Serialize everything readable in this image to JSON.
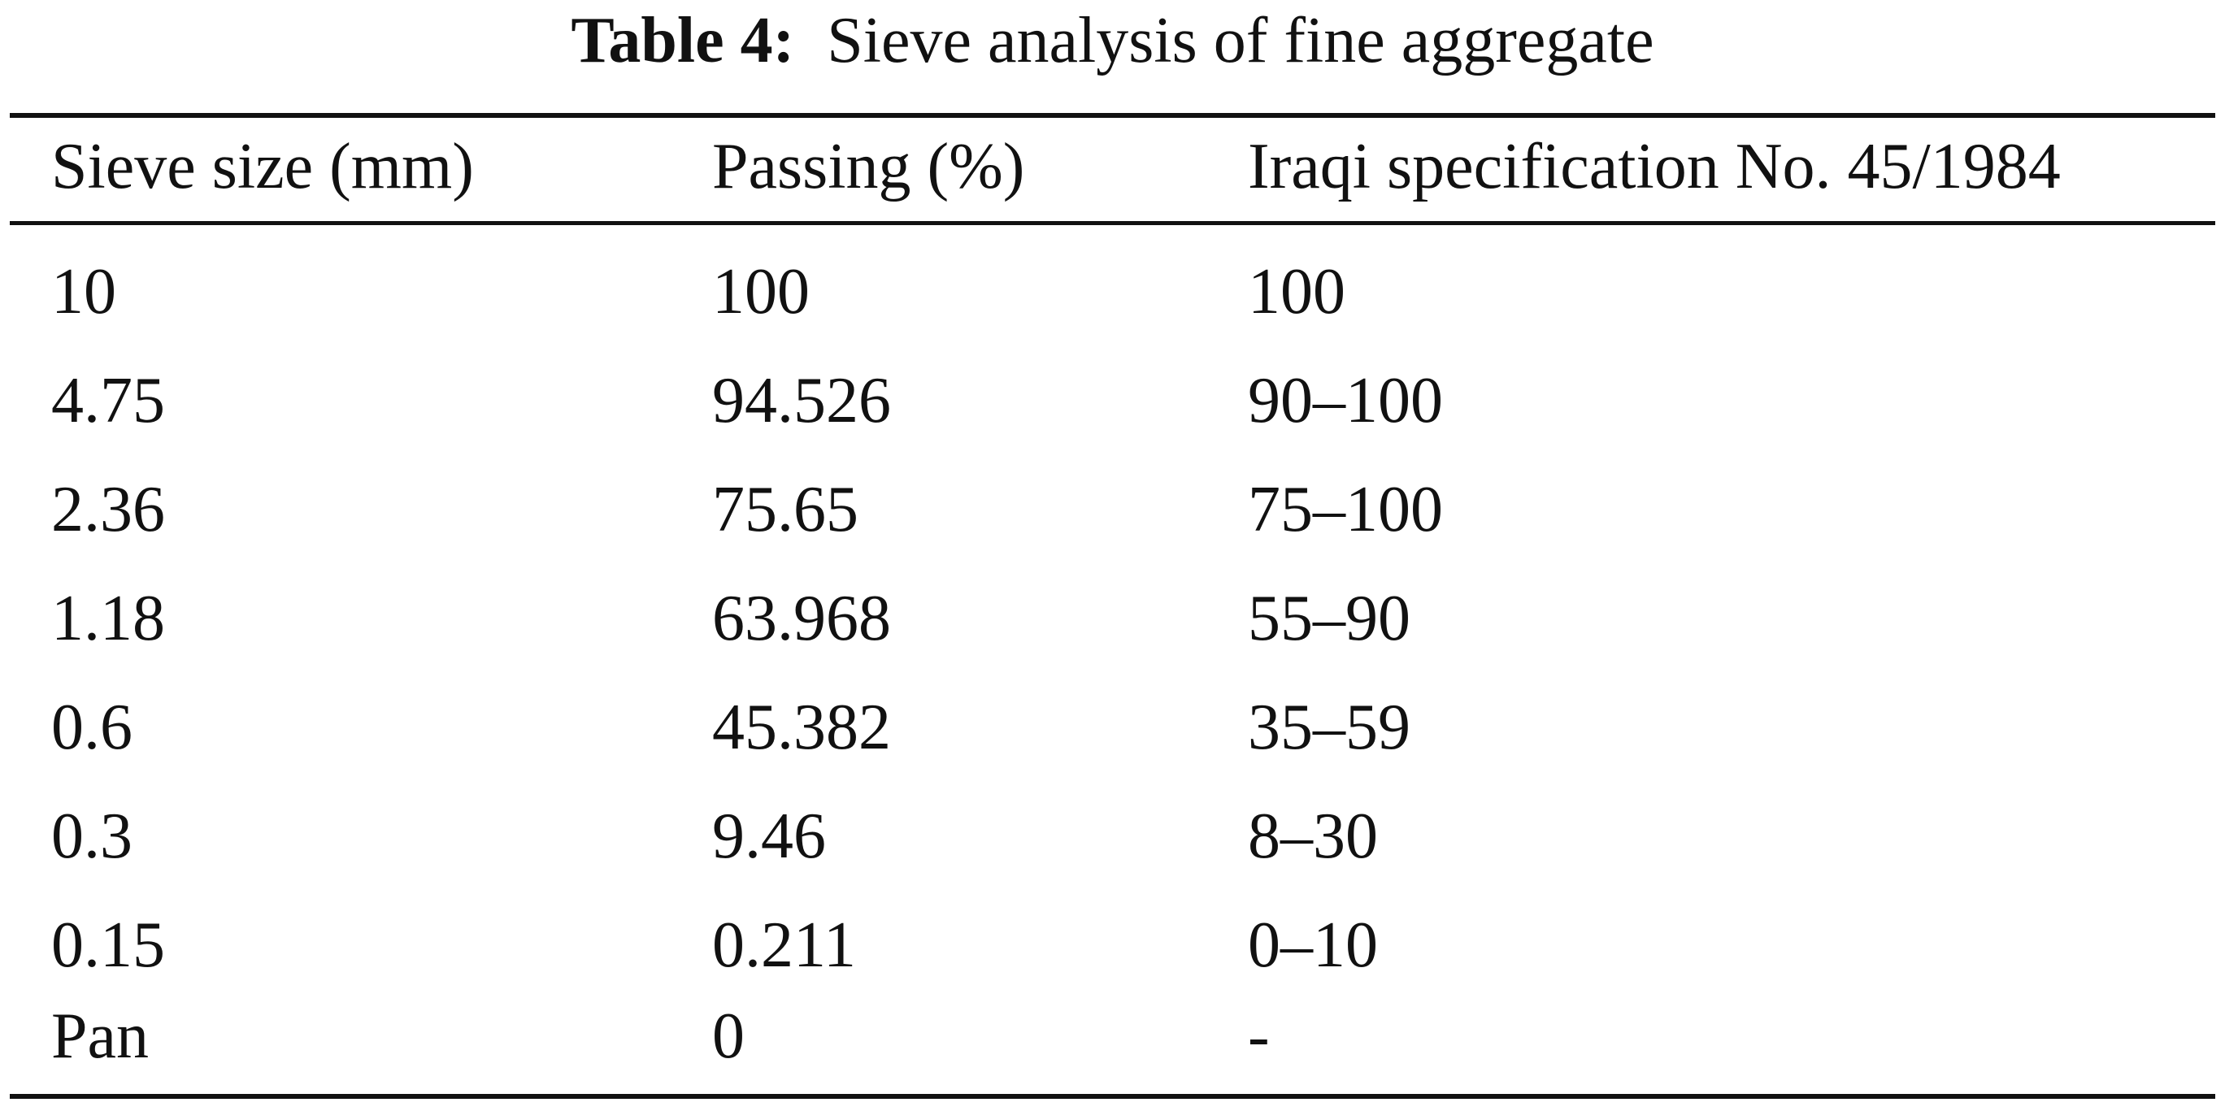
{
  "caption": {
    "label": "Table 4:",
    "title": "Sieve analysis of fine aggregate"
  },
  "table": {
    "headers": [
      "Sieve size (mm)",
      "Passing (%)",
      "Iraqi specification No. 45/1984"
    ],
    "rows": [
      [
        "10",
        "100",
        "100"
      ],
      [
        "4.75",
        "94.526",
        "90–100"
      ],
      [
        "2.36",
        "75.65",
        "75–100"
      ],
      [
        "1.18",
        "63.968",
        "55–90"
      ],
      [
        "0.6",
        "45.382",
        "35–59"
      ],
      [
        "0.3",
        "9.46",
        "8–30"
      ],
      [
        "0.15",
        "0.211",
        "0–10"
      ],
      [
        "Pan",
        "0",
        "-"
      ]
    ]
  }
}
